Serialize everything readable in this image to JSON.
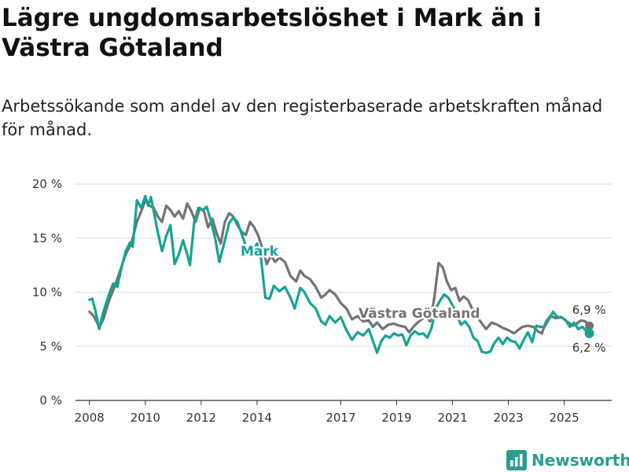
{
  "title": "Lägre ungdomsarbetslöshet i Mark än i Västra Götaland",
  "subtitle": "Arbetssökande som andel av den registerbaserade arbetskraften månad för månad.",
  "logo_text": "Newsworthy",
  "colors": {
    "mark": "#16a394",
    "vg": "#737373",
    "grid": "#dddddd"
  },
  "chart_data": {
    "type": "line",
    "ylabel": "",
    "xlabel": "",
    "ylim": [
      0,
      20
    ],
    "xlim": [
      2007.5,
      2026.7
    ],
    "y_ticks": [
      {
        "value": 0,
        "label": "0 %"
      },
      {
        "value": 5,
        "label": "5 %"
      },
      {
        "value": 10,
        "label": "10 %"
      },
      {
        "value": 15,
        "label": "15 %"
      },
      {
        "value": 20,
        "label": "20 %"
      }
    ],
    "x_ticks": [
      {
        "value": 2008,
        "label": "2008"
      },
      {
        "value": 2010,
        "label": "2010"
      },
      {
        "value": 2012,
        "label": "2012"
      },
      {
        "value": 2014,
        "label": "2014"
      },
      {
        "value": 2017,
        "label": "2017"
      },
      {
        "value": 2019,
        "label": "2019"
      },
      {
        "value": 2021,
        "label": "2021"
      },
      {
        "value": 2023,
        "label": "2023"
      },
      {
        "value": 2025,
        "label": "2025"
      }
    ],
    "series": [
      {
        "name": "Västra Götaland",
        "label": "Västra Götaland",
        "end_label": "6,9 %",
        "end_value": 6.9,
        "points": [
          [
            2008.0,
            8.2
          ],
          [
            2008.15,
            7.8
          ],
          [
            2008.35,
            6.8
          ],
          [
            2008.5,
            7.5
          ],
          [
            2008.7,
            9.2
          ],
          [
            2008.9,
            10.5
          ],
          [
            2009.1,
            12.0
          ],
          [
            2009.3,
            13.5
          ],
          [
            2009.5,
            14.5
          ],
          [
            2009.7,
            16.5
          ],
          [
            2009.9,
            17.8
          ],
          [
            2010.0,
            18.5
          ],
          [
            2010.15,
            18.0
          ],
          [
            2010.3,
            17.8
          ],
          [
            2010.45,
            17.0
          ],
          [
            2010.6,
            16.5
          ],
          [
            2010.75,
            18.0
          ],
          [
            2010.9,
            17.6
          ],
          [
            2011.05,
            17.0
          ],
          [
            2011.2,
            17.5
          ],
          [
            2011.35,
            16.8
          ],
          [
            2011.5,
            18.2
          ],
          [
            2011.65,
            17.5
          ],
          [
            2011.8,
            16.5
          ],
          [
            2011.95,
            17.8
          ],
          [
            2012.1,
            17.5
          ],
          [
            2012.25,
            16.0
          ],
          [
            2012.4,
            16.8
          ],
          [
            2012.55,
            15.5
          ],
          [
            2012.7,
            14.5
          ],
          [
            2012.85,
            16.5
          ],
          [
            2013.0,
            17.3
          ],
          [
            2013.15,
            17.0
          ],
          [
            2013.3,
            16.2
          ],
          [
            2013.45,
            15.6
          ],
          [
            2013.6,
            15.3
          ],
          [
            2013.75,
            16.5
          ],
          [
            2013.9,
            16.0
          ],
          [
            2014.05,
            15.2
          ],
          [
            2014.2,
            14.0
          ],
          [
            2014.35,
            12.6
          ],
          [
            2014.5,
            13.4
          ],
          [
            2014.65,
            12.8
          ],
          [
            2014.8,
            13.2
          ],
          [
            2015.0,
            12.8
          ],
          [
            2015.2,
            11.5
          ],
          [
            2015.4,
            11.0
          ],
          [
            2015.55,
            12.0
          ],
          [
            2015.7,
            11.5
          ],
          [
            2015.9,
            11.2
          ],
          [
            2016.1,
            10.5
          ],
          [
            2016.3,
            9.5
          ],
          [
            2016.45,
            9.8
          ],
          [
            2016.6,
            10.2
          ],
          [
            2016.8,
            9.8
          ],
          [
            2017.0,
            9.0
          ],
          [
            2017.2,
            8.5
          ],
          [
            2017.4,
            7.5
          ],
          [
            2017.6,
            7.8
          ],
          [
            2017.8,
            7.3
          ],
          [
            2018.0,
            7.4
          ],
          [
            2018.15,
            6.8
          ],
          [
            2018.3,
            7.2
          ],
          [
            2018.5,
            6.6
          ],
          [
            2018.7,
            7.0
          ],
          [
            2018.9,
            7.1
          ],
          [
            2019.1,
            6.9
          ],
          [
            2019.3,
            6.8
          ],
          [
            2019.45,
            6.3
          ],
          [
            2019.6,
            6.8
          ],
          [
            2019.75,
            7.2
          ],
          [
            2019.9,
            7.5
          ],
          [
            2020.05,
            7.8
          ],
          [
            2020.2,
            7.3
          ],
          [
            2020.35,
            9.5
          ],
          [
            2020.5,
            12.7
          ],
          [
            2020.65,
            12.3
          ],
          [
            2020.8,
            11.0
          ],
          [
            2020.95,
            10.2
          ],
          [
            2021.1,
            10.4
          ],
          [
            2021.25,
            9.2
          ],
          [
            2021.4,
            9.6
          ],
          [
            2021.55,
            9.3
          ],
          [
            2021.7,
            8.5
          ],
          [
            2021.85,
            7.8
          ],
          [
            2022.0,
            7.3
          ],
          [
            2022.2,
            6.6
          ],
          [
            2022.4,
            7.2
          ],
          [
            2022.6,
            7.0
          ],
          [
            2022.8,
            6.7
          ],
          [
            2023.0,
            6.5
          ],
          [
            2023.2,
            6.2
          ],
          [
            2023.35,
            6.5
          ],
          [
            2023.5,
            6.8
          ],
          [
            2023.7,
            6.9
          ],
          [
            2023.9,
            6.8
          ],
          [
            2024.05,
            6.4
          ],
          [
            2024.2,
            6.2
          ],
          [
            2024.35,
            7.3
          ],
          [
            2024.5,
            7.8
          ],
          [
            2024.7,
            7.6
          ],
          [
            2024.9,
            7.7
          ],
          [
            2025.1,
            7.3
          ],
          [
            2025.3,
            6.9
          ],
          [
            2025.45,
            7.1
          ],
          [
            2025.6,
            7.4
          ],
          [
            2025.75,
            7.3
          ],
          [
            2025.9,
            6.9
          ]
        ]
      },
      {
        "name": "Mark",
        "label": "Mark",
        "end_label": "6,2 %",
        "end_value": 6.2,
        "points": [
          [
            2008.0,
            9.3
          ],
          [
            2008.1,
            9.4
          ],
          [
            2008.2,
            8.4
          ],
          [
            2008.35,
            6.6
          ],
          [
            2008.5,
            8.2
          ],
          [
            2008.7,
            9.8
          ],
          [
            2008.85,
            10.8
          ],
          [
            2009.0,
            10.5
          ],
          [
            2009.15,
            12.3
          ],
          [
            2009.3,
            13.8
          ],
          [
            2009.45,
            14.6
          ],
          [
            2009.55,
            14.2
          ],
          [
            2009.7,
            18.5
          ],
          [
            2009.85,
            17.8
          ],
          [
            2010.0,
            18.9
          ],
          [
            2010.1,
            18.0
          ],
          [
            2010.2,
            18.8
          ],
          [
            2010.3,
            17.5
          ],
          [
            2010.45,
            15.5
          ],
          [
            2010.6,
            13.8
          ],
          [
            2010.75,
            15.2
          ],
          [
            2010.9,
            16.2
          ],
          [
            2011.05,
            12.6
          ],
          [
            2011.2,
            13.5
          ],
          [
            2011.35,
            14.8
          ],
          [
            2011.5,
            13.5
          ],
          [
            2011.6,
            12.5
          ],
          [
            2011.75,
            16.5
          ],
          [
            2011.9,
            17.8
          ],
          [
            2012.05,
            17.6
          ],
          [
            2012.2,
            17.9
          ],
          [
            2012.35,
            16.6
          ],
          [
            2012.5,
            15.0
          ],
          [
            2012.65,
            12.8
          ],
          [
            2012.8,
            14.3
          ],
          [
            2013.0,
            16.4
          ],
          [
            2013.15,
            16.9
          ],
          [
            2013.3,
            16.5
          ],
          [
            2013.45,
            15.4
          ],
          [
            2013.6,
            14.3
          ],
          [
            2013.8,
            13.5
          ],
          [
            2014.0,
            14.5
          ],
          [
            2014.15,
            13.0
          ],
          [
            2014.3,
            9.5
          ],
          [
            2014.45,
            9.4
          ],
          [
            2014.6,
            10.6
          ],
          [
            2014.8,
            10.1
          ],
          [
            2015.0,
            10.5
          ],
          [
            2015.2,
            9.5
          ],
          [
            2015.35,
            8.5
          ],
          [
            2015.55,
            10.4
          ],
          [
            2015.7,
            10.0
          ],
          [
            2015.9,
            9.0
          ],
          [
            2016.1,
            8.5
          ],
          [
            2016.3,
            7.3
          ],
          [
            2016.45,
            7.0
          ],
          [
            2016.6,
            7.8
          ],
          [
            2016.8,
            7.2
          ],
          [
            2017.0,
            7.7
          ],
          [
            2017.2,
            6.5
          ],
          [
            2017.4,
            5.6
          ],
          [
            2017.6,
            6.3
          ],
          [
            2017.8,
            6.0
          ],
          [
            2018.0,
            6.6
          ],
          [
            2018.15,
            5.5
          ],
          [
            2018.3,
            4.4
          ],
          [
            2018.45,
            5.5
          ],
          [
            2018.6,
            6.0
          ],
          [
            2018.75,
            5.8
          ],
          [
            2018.9,
            6.2
          ],
          [
            2019.05,
            6.0
          ],
          [
            2019.2,
            6.1
          ],
          [
            2019.35,
            5.1
          ],
          [
            2019.5,
            6.0
          ],
          [
            2019.65,
            6.4
          ],
          [
            2019.8,
            6.1
          ],
          [
            2019.95,
            6.2
          ],
          [
            2020.1,
            5.8
          ],
          [
            2020.25,
            6.7
          ],
          [
            2020.4,
            8.5
          ],
          [
            2020.55,
            9.2
          ],
          [
            2020.7,
            9.8
          ],
          [
            2020.85,
            9.5
          ],
          [
            2021.0,
            8.8
          ],
          [
            2021.15,
            8.0
          ],
          [
            2021.3,
            7.0
          ],
          [
            2021.45,
            7.3
          ],
          [
            2021.6,
            6.8
          ],
          [
            2021.75,
            5.8
          ],
          [
            2021.9,
            5.5
          ],
          [
            2022.05,
            4.5
          ],
          [
            2022.2,
            4.4
          ],
          [
            2022.35,
            4.5
          ],
          [
            2022.5,
            5.3
          ],
          [
            2022.65,
            5.8
          ],
          [
            2022.8,
            5.2
          ],
          [
            2022.95,
            5.8
          ],
          [
            2023.1,
            5.5
          ],
          [
            2023.25,
            5.4
          ],
          [
            2023.4,
            4.8
          ],
          [
            2023.55,
            5.6
          ],
          [
            2023.7,
            6.3
          ],
          [
            2023.85,
            5.4
          ],
          [
            2024.0,
            6.9
          ],
          [
            2024.15,
            6.8
          ],
          [
            2024.3,
            6.8
          ],
          [
            2024.45,
            7.5
          ],
          [
            2024.6,
            8.2
          ],
          [
            2024.75,
            7.7
          ],
          [
            2024.9,
            7.7
          ],
          [
            2025.05,
            7.4
          ],
          [
            2025.2,
            6.8
          ],
          [
            2025.35,
            7.2
          ],
          [
            2025.5,
            6.6
          ],
          [
            2025.65,
            6.8
          ],
          [
            2025.8,
            6.4
          ],
          [
            2025.9,
            6.2
          ]
        ]
      }
    ]
  }
}
